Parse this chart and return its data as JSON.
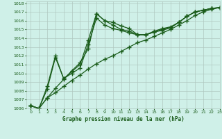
{
  "title": "Graphe pression niveau de la mer (hPa)",
  "bg_color": "#cff0e8",
  "grid_color": "#b0c8c0",
  "line_color": "#1a5c1a",
  "marker": "+",
  "markersize": 4,
  "linewidth": 0.9,
  "xlim": [
    -0.5,
    23
  ],
  "ylim": [
    1006,
    1018.2
  ],
  "xticks": [
    0,
    1,
    2,
    3,
    4,
    5,
    6,
    7,
    8,
    9,
    10,
    11,
    12,
    13,
    14,
    15,
    16,
    17,
    18,
    19,
    20,
    21,
    22,
    23
  ],
  "yticks": [
    1006,
    1007,
    1008,
    1009,
    1010,
    1011,
    1012,
    1013,
    1014,
    1015,
    1016,
    1017,
    1018
  ],
  "series": [
    [
      1006.3,
      1006.0,
      1007.2,
      1008.3,
      1009.3,
      1010.3,
      1011.2,
      1012.8,
      1016.8,
      1016.0,
      1015.8,
      1015.4,
      1015.1,
      1014.4,
      1014.4,
      1014.7,
      1014.9,
      1015.2,
      1015.8,
      1016.5,
      1017.0,
      1017.2,
      1017.4,
      1017.5
    ],
    [
      1006.3,
      1006.0,
      1008.2,
      1011.8,
      1009.4,
      1010.0,
      1010.6,
      1013.3,
      1016.3,
      1015.5,
      1015.1,
      1014.9,
      1014.6,
      1014.4,
      1014.4,
      1014.7,
      1015.0,
      1015.2,
      1015.8,
      1016.5,
      1017.0,
      1017.2,
      1017.4,
      1017.5
    ],
    [
      1006.3,
      1006.0,
      1008.5,
      1012.0,
      1009.4,
      1010.2,
      1011.0,
      1013.8,
      1016.8,
      1016.0,
      1015.5,
      1015.0,
      1014.8,
      1014.4,
      1014.4,
      1014.8,
      1015.1,
      1015.3,
      1015.8,
      1016.5,
      1017.0,
      1017.2,
      1017.4,
      1017.5
    ],
    [
      1006.3,
      1006.0,
      1007.2,
      1007.8,
      1008.5,
      1009.2,
      1009.8,
      1010.5,
      1011.1,
      1011.6,
      1012.0,
      1012.5,
      1013.0,
      1013.5,
      1013.8,
      1014.2,
      1014.6,
      1015.0,
      1015.5,
      1016.0,
      1016.6,
      1017.0,
      1017.3,
      1017.5
    ]
  ]
}
